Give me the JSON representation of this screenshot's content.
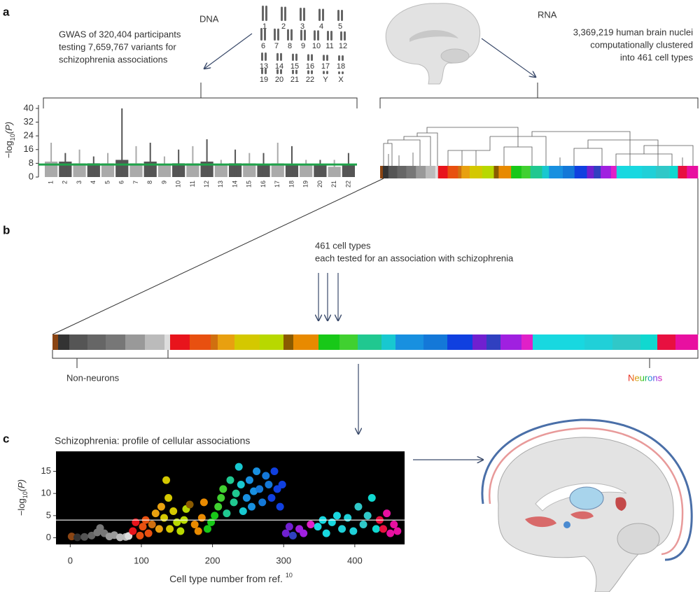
{
  "panel_a": {
    "label": "a",
    "dna": {
      "title": "DNA",
      "lines": [
        "GWAS of 320,404 participants",
        "testing 7,659,767 variants for",
        "schizophrenia associations"
      ],
      "chromosome_rows": [
        [
          "1",
          "2",
          "3",
          "4",
          "5"
        ],
        [
          "6",
          "7",
          "8",
          "9",
          "10",
          "11",
          "12"
        ],
        [
          "13",
          "14",
          "15",
          "16",
          "17",
          "18"
        ],
        [
          "19",
          "20",
          "21",
          "22",
          "Y",
          "X"
        ]
      ]
    },
    "rna": {
      "title": "RNA",
      "lines": [
        "3,369,219 human brain nuclei",
        "computationally clustered",
        "into 461 cell types"
      ]
    }
  },
  "panel_b": {
    "label": "b",
    "lines": [
      "461 cell types",
      "each tested for an association with schizophrenia"
    ],
    "non_neurons": "Non-neurons",
    "neurons": "Neurons"
  },
  "panel_c": {
    "label": "c"
  },
  "cell_type_bar": {
    "xlim": [
      0,
      461
    ],
    "segments": [
      {
        "start": 0,
        "end": 4,
        "color": "#8b4513"
      },
      {
        "start": 4,
        "end": 12,
        "color": "#333333"
      },
      {
        "start": 12,
        "end": 25,
        "color": "#555555"
      },
      {
        "start": 25,
        "end": 38,
        "color": "#666666"
      },
      {
        "start": 38,
        "end": 52,
        "color": "#777777"
      },
      {
        "start": 52,
        "end": 66,
        "color": "#999999"
      },
      {
        "start": 66,
        "end": 80,
        "color": "#bbbbbb"
      },
      {
        "start": 80,
        "end": 84,
        "color": "#dddddd"
      },
      {
        "start": 84,
        "end": 98,
        "color": "#e8141c"
      },
      {
        "start": 98,
        "end": 113,
        "color": "#e85010"
      },
      {
        "start": 113,
        "end": 118,
        "color": "#d07010"
      },
      {
        "start": 118,
        "end": 130,
        "color": "#e8a010"
      },
      {
        "start": 130,
        "end": 148,
        "color": "#d4c800"
      },
      {
        "start": 148,
        "end": 165,
        "color": "#b8d800"
      },
      {
        "start": 165,
        "end": 172,
        "color": "#8a5a00"
      },
      {
        "start": 172,
        "end": 190,
        "color": "#e88a00"
      },
      {
        "start": 190,
        "end": 205,
        "color": "#18c818"
      },
      {
        "start": 205,
        "end": 218,
        "color": "#40d030"
      },
      {
        "start": 218,
        "end": 235,
        "color": "#20c890"
      },
      {
        "start": 235,
        "end": 245,
        "color": "#18c8d0"
      },
      {
        "start": 245,
        "end": 265,
        "color": "#1890e0"
      },
      {
        "start": 265,
        "end": 282,
        "color": "#1478d8"
      },
      {
        "start": 282,
        "end": 300,
        "color": "#1040e0"
      },
      {
        "start": 300,
        "end": 310,
        "color": "#7020d0"
      },
      {
        "start": 310,
        "end": 320,
        "color": "#3040c0"
      },
      {
        "start": 320,
        "end": 335,
        "color": "#a020e0"
      },
      {
        "start": 335,
        "end": 343,
        "color": "#e020c8"
      },
      {
        "start": 343,
        "end": 380,
        "color": "#18d8e0"
      },
      {
        "start": 380,
        "end": 400,
        "color": "#20d0d8"
      },
      {
        "start": 400,
        "end": 420,
        "color": "#30c8c8"
      },
      {
        "start": 420,
        "end": 432,
        "color": "#10d8d0"
      },
      {
        "start": 432,
        "end": 445,
        "color": "#e81040"
      },
      {
        "start": 445,
        "end": 461,
        "color": "#e810a0"
      }
    ]
  },
  "chart_data": [
    {
      "type": "manhattan",
      "y_label": "−log",
      "y_label_sub": "10",
      "y_label_suffix": "(P)",
      "categories": [
        "1",
        "2",
        "3",
        "4",
        "5",
        "6",
        "7",
        "8",
        "9",
        "10",
        "11",
        "12",
        "13",
        "14",
        "15",
        "16",
        "17",
        "18",
        "19",
        "20",
        "21",
        "22"
      ],
      "values": [
        20,
        14,
        16,
        12,
        14,
        40,
        18,
        20,
        12,
        16,
        18,
        22,
        10,
        16,
        14,
        14,
        20,
        18,
        10,
        10,
        10,
        14
      ],
      "bulk_values": [
        9,
        9,
        8,
        8,
        8,
        10,
        8,
        9,
        7,
        8,
        8,
        9,
        7,
        8,
        8,
        7,
        8,
        7,
        7,
        7,
        6,
        7
      ],
      "colors": [
        "#aaaaaa",
        "#555555"
      ],
      "threshold": 7.3,
      "threshold_color": "#1fa34a",
      "ylim": [
        0,
        42
      ],
      "yticks": [
        0,
        8,
        16,
        24,
        32,
        40
      ]
    },
    {
      "type": "scatter",
      "title": "Schizophrenia: profile of cellular associations",
      "y_label": "−log",
      "y_label_sub": "10",
      "y_label_suffix": "(P)",
      "x_label": "Cell type number from ref.",
      "x_label_ref": "10",
      "x": [
        2,
        10,
        20,
        30,
        38,
        42,
        48,
        55,
        62,
        70,
        78,
        82,
        88,
        92,
        98,
        102,
        106,
        110,
        115,
        120,
        125,
        128,
        132,
        135,
        138,
        140,
        145,
        150,
        155,
        160,
        163,
        168,
        175,
        180,
        185,
        188,
        193,
        198,
        203,
        208,
        212,
        215,
        220,
        225,
        230,
        233,
        237,
        240,
        243,
        248,
        252,
        255,
        258,
        262,
        266,
        270,
        275,
        279,
        283,
        287,
        291,
        295,
        298,
        303,
        308,
        313,
        322,
        328,
        338,
        348,
        355,
        360,
        368,
        375,
        382,
        390,
        398,
        405,
        412,
        418,
        424,
        430,
        435,
        440,
        445,
        450,
        455,
        460
      ],
      "values": [
        0.3,
        0.1,
        0.2,
        0.5,
        1.2,
        2.2,
        1.0,
        0.3,
        0.6,
        0.1,
        0.2,
        0.4,
        1.5,
        3.5,
        0.5,
        2.5,
        4.0,
        1.0,
        3.0,
        5.5,
        2.0,
        7.0,
        4.5,
        13,
        9,
        2.0,
        6.0,
        3.5,
        1.5,
        4.0,
        6.5,
        7.5,
        3,
        1.5,
        4.5,
        8,
        2,
        3.5,
        5,
        7,
        9,
        11,
        5.5,
        13,
        8,
        10,
        16,
        12,
        6,
        9,
        13,
        7,
        10.5,
        15,
        11,
        8,
        14,
        12,
        9,
        15,
        11,
        7,
        12,
        1,
        2.5,
        0.5,
        2,
        1,
        3,
        2.5,
        4,
        1,
        3.5,
        5,
        2,
        4.5,
        1.5,
        7,
        3,
        5,
        9,
        2,
        4,
        2,
        5.5,
        1,
        3,
        1.5
      ],
      "threshold": 4,
      "background": "#000000",
      "xlim": [
        -20,
        470
      ],
      "xticks": [
        0,
        100,
        200,
        300,
        400
      ],
      "ylim": [
        -1.5,
        19.5
      ],
      "yticks": [
        0,
        5,
        10,
        15
      ]
    }
  ]
}
